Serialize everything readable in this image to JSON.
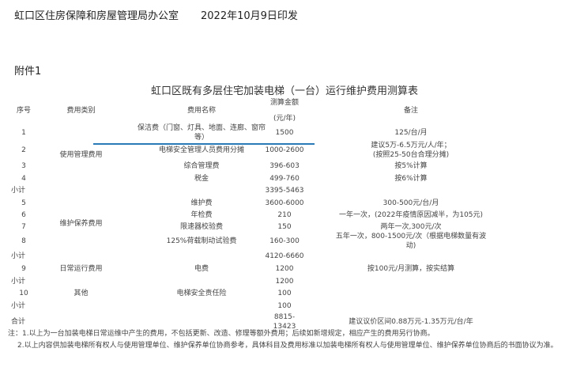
{
  "header": {
    "issuer": "虹口区住房保障和房屋管理局办公室",
    "date": "2022年10月9日印发"
  },
  "attachment": "附件1",
  "title": "虹口区既有多层住宅加装电梯（一台）运行维护费用测算表",
  "columns": {
    "no": "序号",
    "category": "费用类别",
    "name": "费用名称",
    "amount_l1": "测算金额",
    "amount_l2": "(元/年)",
    "remark": "备注"
  },
  "categories": {
    "usage": "使用管理费用",
    "maintenance": "维护保养费用",
    "daily": "日常运行费用",
    "other": "其他"
  },
  "rows": [
    {
      "no": "1",
      "name_l1": "保洁费（门窗、灯具、地面、连廊、窗帘",
      "name_l2": "等）",
      "amount": "1500",
      "remark": "125/台/月"
    },
    {
      "no": "2",
      "name": "电梯安全管理人员费用分摊",
      "amount": "1000-2600",
      "remark_l1": "建议5万-6.5万元/人/年；",
      "remark_l2": "(按照25-50台合理分摊)"
    },
    {
      "no": "3",
      "name": "综合管理费",
      "amount": "396-603",
      "remark": "按5%计算"
    },
    {
      "no": "4",
      "name": "税金",
      "amount": "499-760",
      "remark": "按6%计算"
    },
    {
      "no": "小计",
      "amount": "3395-5463"
    },
    {
      "no": "5",
      "name": "维护费",
      "amount": "3600-6000",
      "remark": "300-500元/台/月"
    },
    {
      "no": "6",
      "name": "年检费",
      "amount": "210",
      "remark": "一年一次，(2022年疫情原因减半，为105元)"
    },
    {
      "no": "7",
      "name": "限速器校验费",
      "amount": "150",
      "remark": "两年一次,300元/次"
    },
    {
      "no": "8",
      "name": "125%荷载制动试验费",
      "amount": "160-300",
      "remark_l1": "五年一次，800-1500元/次（根据电梯数量有波",
      "remark_l2": "动)"
    },
    {
      "no": "小计",
      "amount": "4120-6660"
    },
    {
      "no": "9",
      "name": "电费",
      "amount": "1200",
      "remark": "按100元/月测算，按实结算"
    },
    {
      "no": "小计",
      "amount": "1200"
    },
    {
      "no": "10",
      "name": "电梯安全责任险",
      "amount": "100"
    },
    {
      "no": "小计",
      "amount": "100"
    },
    {
      "no": "合计",
      "amount_l1": "8815-",
      "amount_l2": "13423",
      "remark": "建议议价区间0.88万元-1.35万元/台/年"
    }
  ],
  "notes": [
    "注：1.以上为一台加装电梯日常运维中产生的费用，不包括更新、改造、修理等额外费用；后续如新增规定，相应产生的费用另行协商。",
    "2.以上内容供加装电梯所有权人与使用管理单位、维护保养单位协商参考，具体科目及费用标准以加装电梯所有权人与使用管理单位、维护保养单位协商后的书面协议为准。"
  ],
  "colors": {
    "underline": "#2a7ab8"
  }
}
